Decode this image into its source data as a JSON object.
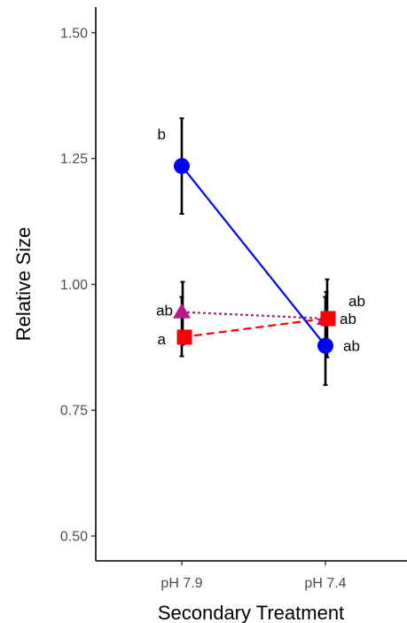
{
  "chart_data": {
    "type": "line",
    "xlabel": "Secondary Treatment",
    "ylabel": "Relative Size",
    "categories": [
      "pH 7.9",
      "pH 7.4"
    ],
    "ylim": [
      0.45,
      1.55
    ],
    "yticks": [
      0.5,
      0.75,
      1.0,
      1.25,
      1.5
    ],
    "ytick_labels": [
      "0.50",
      "0.75",
      "1.00",
      "1.25",
      "1.50"
    ],
    "grid": false,
    "legend": "none",
    "series": [
      {
        "color": "#0000ff",
        "marker": "circle",
        "line": "solid",
        "values": [
          1.235,
          0.878
        ],
        "error_low": [
          1.14,
          0.8
        ],
        "error_high": [
          1.33,
          0.975
        ],
        "labels": [
          "b",
          "ab"
        ]
      },
      {
        "color": "#b5178f",
        "marker": "triangle",
        "line": "dotted",
        "values": [
          0.945,
          0.932
        ],
        "error_low": [
          0.88,
          0.865
        ],
        "error_high": [
          1.005,
          0.985
        ],
        "labels": [
          "ab",
          "ab"
        ]
      },
      {
        "color": "#ff0000",
        "marker": "square",
        "line": "dashed",
        "values": [
          0.895,
          0.932
        ],
        "error_low": [
          0.857,
          0.855
        ],
        "error_high": [
          0.975,
          1.01
        ],
        "labels": [
          "a",
          "ab"
        ]
      }
    ]
  }
}
